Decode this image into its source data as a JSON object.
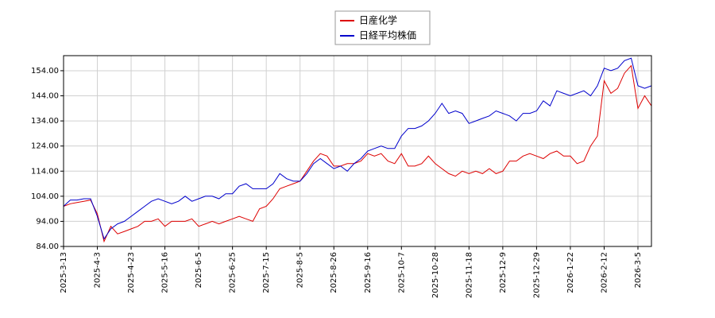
{
  "chart_data": {
    "type": "line",
    "categories": [
      "2025-3-13",
      null,
      null,
      null,
      null,
      "2025-4-3",
      null,
      null,
      null,
      null,
      "2025-4-23",
      null,
      null,
      null,
      null,
      "2025-5-16",
      null,
      null,
      null,
      null,
      "2025-6-5",
      null,
      null,
      null,
      null,
      "2025-6-25",
      null,
      null,
      null,
      null,
      "2025-7-15",
      null,
      null,
      null,
      null,
      "2025-8-5",
      null,
      null,
      null,
      null,
      "2025-8-26",
      null,
      null,
      null,
      null,
      "2025-9-16",
      null,
      null,
      null,
      null,
      "2025-10-7",
      null,
      null,
      null,
      null,
      "2025-10-28",
      null,
      null,
      null,
      null,
      "2025-11-18",
      null,
      null,
      null,
      null,
      "2025-12-9",
      null,
      null,
      null,
      null,
      "2025-12-29",
      null,
      null,
      null,
      null,
      "2026-1-22",
      null,
      null,
      null,
      null,
      "2026-2-12",
      null,
      null,
      null,
      null,
      "2026-3-5",
      null,
      null
    ],
    "series": [
      {
        "name": "日産化学",
        "color": "#dd0000",
        "values": [
          100,
          101,
          101.5,
          102,
          102.5,
          97,
          86,
          92,
          89,
          90,
          91,
          92,
          94,
          94,
          95,
          92,
          94,
          94,
          94,
          95,
          92,
          93,
          94,
          93,
          94,
          95,
          96,
          95,
          94,
          99,
          100,
          103,
          107,
          108,
          109,
          110,
          114,
          118,
          121,
          120,
          116,
          116,
          117,
          117,
          118,
          121,
          120,
          121,
          118,
          117,
          121,
          116,
          116,
          117,
          120,
          117,
          115,
          113,
          112,
          114,
          113,
          114,
          113,
          115,
          113,
          114,
          118,
          118,
          120,
          121,
          120,
          119,
          121,
          122,
          120,
          120,
          117,
          118,
          124,
          128,
          150,
          145,
          147,
          153,
          156,
          139,
          144,
          140
        ]
      },
      {
        "name": "日経平均株価",
        "color": "#0000cc",
        "values": [
          100,
          102.5,
          102.5,
          103,
          103,
          96,
          87,
          91,
          93,
          94,
          96,
          98,
          100,
          102,
          103,
          102,
          101,
          102,
          104,
          102,
          103,
          104,
          104,
          103,
          105,
          105,
          108,
          109,
          107,
          107,
          107,
          109,
          113,
          111,
          110,
          110,
          113,
          117,
          119,
          117,
          115,
          116,
          114,
          117,
          119,
          122,
          123,
          124,
          123,
          123,
          128,
          131,
          131,
          132,
          134,
          137,
          141,
          137,
          138,
          137,
          133,
          134,
          135,
          136,
          138,
          137,
          136,
          134,
          137,
          137,
          138,
          142,
          140,
          146,
          145,
          144,
          145,
          146,
          144,
          148,
          155,
          154,
          155,
          158,
          159,
          148,
          147,
          148
        ]
      }
    ],
    "ylim": [
      84,
      160
    ],
    "yticks": [
      {
        "value": 84,
        "label": "84.00"
      },
      {
        "value": 94,
        "label": "94.00"
      },
      {
        "value": 104,
        "label": "104.00"
      },
      {
        "value": 114,
        "label": "114.00"
      },
      {
        "value": 124,
        "label": "124.00"
      },
      {
        "value": 134,
        "label": "134.00"
      },
      {
        "value": 144,
        "label": "144.00"
      },
      {
        "value": 154,
        "label": "154.00"
      }
    ],
    "grid": true,
    "legend": "upper center"
  }
}
